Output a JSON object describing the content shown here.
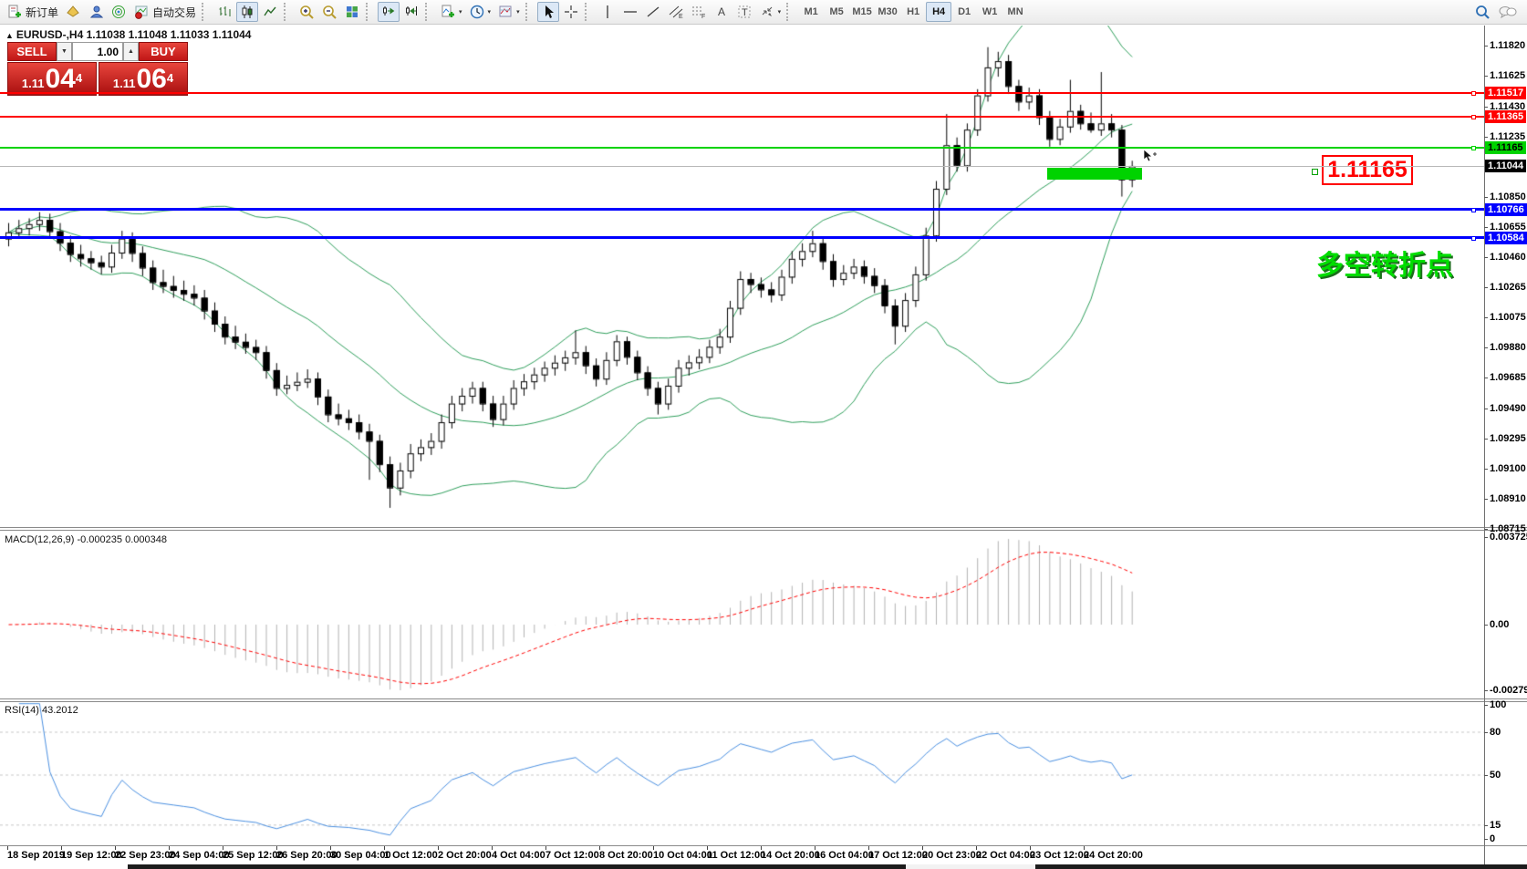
{
  "toolbar": {
    "new_order_label": "新订单",
    "autotrading_label": "自动交易",
    "timeframes": [
      "M1",
      "M5",
      "M15",
      "M30",
      "H1",
      "H4",
      "D1",
      "W1",
      "MN"
    ],
    "active_timeframe": "H4",
    "spinner_down": "▼",
    "spinner_up": "▲",
    "caret": "▾"
  },
  "chart": {
    "collapse_glyph": "▲",
    "title_line": "EURUSD-,H4  1.11038 1.11048 1.11033 1.11044",
    "trade_panel": {
      "sell_label": "SELL",
      "buy_label": "BUY",
      "volume": "1.00",
      "sell_small": "1.11",
      "sell_big": "04",
      "sell_sup": "4",
      "buy_small": "1.11",
      "buy_big": "06",
      "buy_sup": "4"
    },
    "annotation_price_box": "1.11165",
    "turning_point_text": "多空转折点",
    "macd_label": "MACD(12,26,9) -0.000235 0.000348",
    "rsi_label": "RSI(14) 43.2012"
  },
  "chart_data": {
    "type": "candlestick",
    "symbol": "EURUSD-",
    "period": "H4",
    "ohlc_current": {
      "open": 1.11038,
      "high": 1.11048,
      "low": 1.11033,
      "close": 1.11044
    },
    "y_range": [
      1.08715,
      1.11965
    ],
    "y_axis_ticks": [
      "1.11820",
      "1.11625",
      "1.11430",
      "1.11235",
      "1.10850",
      "1.10655",
      "1.10460",
      "1.10265",
      "1.10075",
      "1.09880",
      "1.09685",
      "1.09490",
      "1.09295",
      "1.09100",
      "1.08910",
      "1.08715"
    ],
    "x_axis_labels": [
      "18 Sep 2019",
      "19 Sep 12:00",
      "22 Sep 23:00",
      "24 Sep 04:00",
      "25 Sep 12:00",
      "26 Sep 20:00",
      "30 Sep 04:00",
      "1 Oct 12:00",
      "2 Oct 20:00",
      "4 Oct 04:00",
      "7 Oct 12:00",
      "8 Oct 20:00",
      "10 Oct 04:00",
      "11 Oct 12:00",
      "14 Oct 20:00",
      "16 Oct 04:00",
      "17 Oct 12:00",
      "20 Oct 23:00",
      "22 Oct 04:00",
      "23 Oct 12:00",
      "24 Oct 20:00"
    ],
    "candles": [
      [
        1.1058,
        1.1068,
        1.1053,
        1.1062
      ],
      [
        1.1062,
        1.107,
        1.1058,
        1.10647
      ],
      [
        1.10647,
        1.1071,
        1.106,
        1.10673
      ],
      [
        1.10673,
        1.1075,
        1.1063,
        1.107
      ],
      [
        1.107,
        1.1074,
        1.1058,
        1.10627
      ],
      [
        1.10627,
        1.1068,
        1.105,
        1.10553
      ],
      [
        1.10553,
        1.106,
        1.1043,
        1.1048
      ],
      [
        1.1048,
        1.1054,
        1.104,
        1.10453
      ],
      [
        1.10453,
        1.105,
        1.1038,
        1.10427
      ],
      [
        1.10427,
        1.1047,
        1.1035,
        1.104
      ],
      [
        1.104,
        1.1054,
        1.1036,
        1.1049
      ],
      [
        1.1049,
        1.1063,
        1.1045,
        1.1058
      ],
      [
        1.1058,
        1.1062,
        1.1043,
        1.10487
      ],
      [
        1.10487,
        1.1053,
        1.1034,
        1.10393
      ],
      [
        1.10393,
        1.1044,
        1.1025,
        1.103
      ],
      [
        1.103,
        1.1038,
        1.1023,
        1.10275
      ],
      [
        1.10275,
        1.1034,
        1.102,
        1.1025
      ],
      [
        1.1025,
        1.1031,
        1.1018,
        1.10225
      ],
      [
        1.10225,
        1.1028,
        1.1015,
        1.102
      ],
      [
        1.102,
        1.1025,
        1.1006,
        1.10117
      ],
      [
        1.10117,
        1.1017,
        1.0998,
        1.10033
      ],
      [
        1.10033,
        1.1008,
        1.099,
        1.0995
      ],
      [
        1.0995,
        1.1002,
        1.0987,
        1.09917
      ],
      [
        1.09917,
        1.0997,
        1.0984,
        1.09883
      ],
      [
        1.09883,
        1.0993,
        1.098,
        1.0985
      ],
      [
        1.0985,
        1.0989,
        1.0968,
        1.09735
      ],
      [
        1.09735,
        1.0978,
        1.0957,
        1.0962
      ],
      [
        1.0962,
        1.097,
        1.0958,
        1.0964
      ],
      [
        1.0964,
        1.0972,
        1.096,
        1.0966
      ],
      [
        1.0966,
        1.0974,
        1.0962,
        1.0968
      ],
      [
        1.0968,
        1.0972,
        1.0951,
        1.09565
      ],
      [
        1.09565,
        1.0961,
        1.094,
        1.0945
      ],
      [
        1.0945,
        1.0952,
        1.0938,
        1.09425
      ],
      [
        1.09425,
        1.0948,
        1.0935,
        1.094
      ],
      [
        1.094,
        1.0945,
        1.0929,
        1.0934
      ],
      [
        1.0934,
        1.0939,
        1.0903,
        1.0928
      ],
      [
        1.0928,
        1.0932,
        1.0908,
        1.0913
      ],
      [
        1.0913,
        1.0918,
        1.0885,
        1.0898
      ],
      [
        1.0898,
        1.0914,
        1.0893,
        1.0909
      ],
      [
        1.0909,
        1.0926,
        1.0904,
        1.092
      ],
      [
        1.092,
        1.0929,
        1.0915,
        1.0924
      ],
      [
        1.0924,
        1.0933,
        1.0919,
        1.0928
      ],
      [
        1.0928,
        1.0945,
        1.0923,
        1.094
      ],
      [
        1.094,
        1.0957,
        1.0936,
        1.0952
      ],
      [
        1.0952,
        1.0962,
        1.0947,
        1.0957
      ],
      [
        1.0957,
        1.0966,
        1.0952,
        1.0962
      ],
      [
        1.0962,
        1.0966,
        1.0947,
        1.0952
      ],
      [
        1.0952,
        1.0957,
        1.0937,
        1.0942
      ],
      [
        1.0942,
        1.0957,
        1.0938,
        1.0952
      ],
      [
        1.0952,
        1.0967,
        1.0948,
        1.0962
      ],
      [
        1.0962,
        1.0971,
        1.0957,
        1.09663
      ],
      [
        1.09663,
        1.0975,
        1.0961,
        1.09707
      ],
      [
        1.09707,
        1.0979,
        1.0966,
        1.0975
      ],
      [
        1.0975,
        1.0983,
        1.097,
        1.09783
      ],
      [
        1.09783,
        1.0986,
        1.0973,
        1.09817
      ],
      [
        1.09817,
        1.0999,
        1.0977,
        1.0985
      ],
      [
        1.0985,
        1.0989,
        1.0971,
        1.09765
      ],
      [
        1.09765,
        1.0981,
        1.0963,
        1.0968
      ],
      [
        1.0968,
        1.0985,
        1.0964,
        1.098
      ],
      [
        1.098,
        1.0996,
        1.0976,
        1.0992
      ],
      [
        1.0992,
        1.0995,
        1.0977,
        1.0982
      ],
      [
        1.0982,
        1.0986,
        1.0967,
        1.0972
      ],
      [
        1.0972,
        1.0976,
        1.0957,
        1.0962
      ],
      [
        1.0962,
        1.0966,
        1.0945,
        1.0952
      ],
      [
        1.0952,
        1.0968,
        1.0948,
        1.09635
      ],
      [
        1.09635,
        1.098,
        1.0959,
        1.0975
      ],
      [
        1.0975,
        1.0983,
        1.097,
        1.09785
      ],
      [
        1.09785,
        1.0987,
        1.0974,
        1.0982
      ],
      [
        1.0982,
        1.0993,
        1.0978,
        1.09885
      ],
      [
        1.09885,
        1.1,
        1.0984,
        1.0995
      ],
      [
        1.0995,
        1.1018,
        1.0991,
        1.10135
      ],
      [
        1.10135,
        1.1037,
        1.1009,
        1.1032
      ],
      [
        1.1032,
        1.1036,
        1.1023,
        1.10287
      ],
      [
        1.10287,
        1.1033,
        1.102,
        1.10253
      ],
      [
        1.10253,
        1.103,
        1.1017,
        1.1022
      ],
      [
        1.1022,
        1.1038,
        1.1018,
        1.10335
      ],
      [
        1.10335,
        1.105,
        1.1029,
        1.1045
      ],
      [
        1.1045,
        1.1055,
        1.104,
        1.105
      ],
      [
        1.105,
        1.1063,
        1.1046,
        1.1055
      ],
      [
        1.1055,
        1.1059,
        1.1038,
        1.10435
      ],
      [
        1.10435,
        1.1048,
        1.1027,
        1.1032
      ],
      [
        1.1032,
        1.1041,
        1.1028,
        1.1036
      ],
      [
        1.1036,
        1.1045,
        1.1032,
        1.104
      ],
      [
        1.104,
        1.1044,
        1.1029,
        1.1034
      ],
      [
        1.1034,
        1.1039,
        1.1023,
        1.1028
      ],
      [
        1.1028,
        1.1032,
        1.101,
        1.1015
      ],
      [
        1.1015,
        1.1019,
        1.099,
        1.1002
      ],
      [
        1.1002,
        1.1023,
        1.0998,
        1.10185
      ],
      [
        1.10185,
        1.104,
        1.1014,
        1.1035
      ],
      [
        1.1035,
        1.1065,
        1.1031,
        1.106
      ],
      [
        1.106,
        1.1095,
        1.1056,
        1.109
      ],
      [
        1.109,
        1.1138,
        1.1086,
        1.1118
      ],
      [
        1.1118,
        1.1123,
        1.1101,
        1.1105
      ],
      [
        1.1105,
        1.1132,
        1.1101,
        1.1128
      ],
      [
        1.1128,
        1.1154,
        1.1124,
        1.115
      ],
      [
        1.115,
        1.1181,
        1.1146,
        1.1168
      ],
      [
        1.1168,
        1.1178,
        1.1162,
        1.1172
      ],
      [
        1.1172,
        1.1176,
        1.1151,
        1.1156
      ],
      [
        1.1156,
        1.116,
        1.114,
        1.1146
      ],
      [
        1.1146,
        1.1155,
        1.1141,
        1.115
      ],
      [
        1.115,
        1.1154,
        1.1131,
        1.1136
      ],
      [
        1.1136,
        1.114,
        1.1117,
        1.1122
      ],
      [
        1.1122,
        1.1135,
        1.1118,
        1.113
      ],
      [
        1.113,
        1.116,
        1.1126,
        1.114
      ],
      [
        1.114,
        1.1144,
        1.1128,
        1.1132
      ],
      [
        1.1132,
        1.1139,
        1.1126,
        1.1128
      ],
      [
        1.1128,
        1.1165,
        1.1124,
        1.1132
      ],
      [
        1.1132,
        1.1138,
        1.1123,
        1.1128
      ],
      [
        1.1128,
        1.1131,
        1.1085,
        1.1096
      ],
      [
        1.1096,
        1.1108,
        1.1091,
        1.11044
      ]
    ],
    "overlays": {
      "bollinger_bands": {
        "period": 20,
        "deviation": 2,
        "color": "#2e9e5b"
      }
    },
    "horizontal_levels": [
      {
        "price": 1.11517,
        "label": "1.11517",
        "color": "#ff0000",
        "thickness": 2,
        "text_color": "#ffffff"
      },
      {
        "price": 1.11365,
        "label": "1.11365",
        "color": "#ff0000",
        "thickness": 2,
        "text_color": "#ffffff"
      },
      {
        "price": 1.11165,
        "label": "1.11165",
        "color": "#00d300",
        "thickness": 2,
        "text_color": "#000000"
      },
      {
        "price": 1.10766,
        "label": "1.10766",
        "color": "#0000ff",
        "thickness": 3,
        "text_color": "#ffffff"
      },
      {
        "price": 1.10584,
        "label": "1.10584",
        "color": "#0000ff",
        "thickness": 3,
        "text_color": "#ffffff"
      }
    ],
    "current_price": {
      "price": 1.11044,
      "label": "1.11044",
      "line_color": "#b8b8b8",
      "label_bg": "#000000",
      "text_color": "#ffffff"
    },
    "indicators": [
      {
        "type": "macd",
        "label": "MACD(12,26,9)",
        "values_text": [
          "-0.000235",
          "0.000348"
        ],
        "scale_labels": {
          "max": "0.003725",
          "zero": "0.00",
          "min": "-0.002794"
        },
        "scale_values": {
          "max": 0.003725,
          "zero": 0,
          "min": -0.002794
        },
        "histogram_color": "#b2b2b2",
        "signal_color": "#ff0000",
        "signal_style": "dashed"
      },
      {
        "type": "rsi",
        "label": "RSI(14)",
        "value": 43.2012,
        "levels": [
          100,
          80,
          50,
          15,
          0
        ],
        "dashed_levels": [
          80,
          50,
          15
        ],
        "line_color": "#4a8fe0"
      }
    ],
    "annotations": [
      {
        "type": "price_box",
        "text": "1.11165",
        "color": "#ff0000"
      },
      {
        "type": "zone",
        "price": 1.11165,
        "color": "#00d300"
      },
      {
        "type": "text",
        "text": "多空转折点",
        "color": "#00dd00"
      }
    ],
    "candle_colors": {
      "up_fill": "#ffffff",
      "down_fill": "#000000",
      "outline": "#000000"
    }
  }
}
